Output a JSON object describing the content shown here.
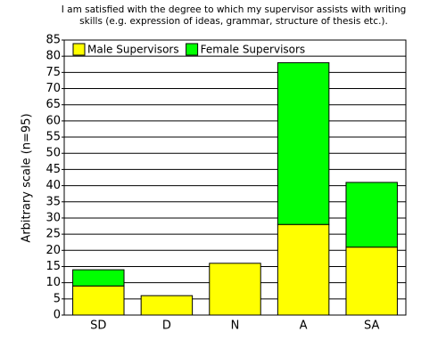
{
  "chart_data": {
    "type": "stacked_bar",
    "title": [
      "I am satisfied with the degree to which my supervisor assists with writing",
      "skills (e.g. expression of ideas, grammar, structure of thesis etc.)."
    ],
    "y_label": "Arbitrary scale (n=95)",
    "categories": [
      "SD",
      "D",
      "N",
      "A",
      "SA"
    ],
    "series": [
      {
        "name": "Male Supervisors",
        "color": "#ffff00",
        "values": [
          9,
          6,
          16,
          28,
          21
        ]
      },
      {
        "name": "Female Supervisors",
        "color": "#00ff00",
        "values": [
          5,
          0,
          0,
          50,
          20
        ]
      }
    ],
    "ylim": [
      0,
      85
    ],
    "yticks": [
      0,
      5,
      10,
      15,
      20,
      25,
      30,
      35,
      40,
      45,
      50,
      55,
      60,
      65,
      70,
      75,
      80,
      85
    ],
    "grid": true,
    "legend": "top-left"
  }
}
